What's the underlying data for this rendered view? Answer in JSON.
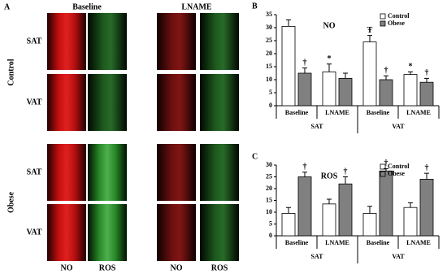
{
  "panel_a": {
    "label": "A",
    "columns": [
      "Baseline",
      "LNAME"
    ],
    "groups": [
      "Control",
      "Obese"
    ],
    "rows": [
      "SAT",
      "VAT",
      "SAT",
      "VAT"
    ],
    "channels": [
      "NO",
      "ROS",
      "NO",
      "ROS"
    ]
  },
  "chart_data": [
    {
      "type": "bar",
      "panel": "B",
      "title": "NO",
      "categories": [
        "Baseline",
        "LNAME",
        "Baseline",
        "LNAME"
      ],
      "groups": [
        "SAT",
        "VAT"
      ],
      "series": [
        {
          "name": "Control",
          "color": "#ffffff",
          "values": [
            30.5,
            13,
            24.5,
            12
          ],
          "errors": [
            2.5,
            3,
            2.5,
            1
          ],
          "annotations": [
            null,
            "*",
            "Ŧ",
            "*"
          ]
        },
        {
          "name": "Obese",
          "color": "#808080",
          "values": [
            12.5,
            10.5,
            10,
            9
          ],
          "errors": [
            2,
            2,
            1.5,
            1.5
          ],
          "annotations": [
            "†",
            null,
            "†",
            "†"
          ]
        }
      ],
      "ylim": [
        0,
        35
      ],
      "yticks": [
        0,
        5,
        10,
        15,
        20,
        25,
        30,
        35
      ],
      "legend": "upper right"
    },
    {
      "type": "bar",
      "panel": "C",
      "title": "ROS",
      "categories": [
        "Baseline",
        "LNAME",
        "Baseline",
        "LNAME"
      ],
      "groups": [
        "SAT",
        "VAT"
      ],
      "series": [
        {
          "name": "Control",
          "color": "#ffffff",
          "values": [
            9.5,
            13.5,
            9.5,
            12
          ],
          "errors": [
            2.5,
            2,
            3,
            2
          ],
          "annotations": [
            null,
            null,
            null,
            null
          ]
        },
        {
          "name": "Obese",
          "color": "#808080",
          "values": [
            25,
            22,
            27.5,
            24
          ],
          "errors": [
            2,
            3,
            1,
            2.5
          ],
          "annotations": [
            "†",
            "†",
            "†",
            "†"
          ]
        }
      ],
      "ylim": [
        0,
        30
      ],
      "yticks": [
        0,
        5,
        10,
        15,
        20,
        25,
        30
      ],
      "legend": "upper right"
    }
  ]
}
